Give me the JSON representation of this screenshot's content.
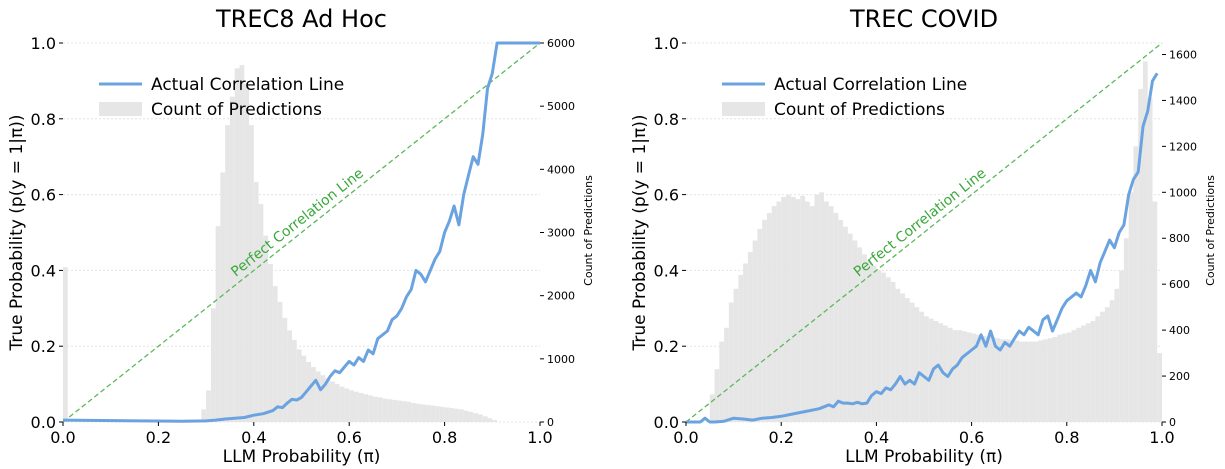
{
  "chart_data": [
    {
      "type": "bar",
      "title": "TREC8 Ad Hoc",
      "xlabel": "LLM Probability (π)",
      "ylabel": "True Probability (p(y = 1|π))",
      "ylabel_right": "Count of Predictions",
      "xlim": [
        0,
        1
      ],
      "ylim": [
        0,
        1
      ],
      "ylim_right": [
        0,
        6000
      ],
      "x_ticks": [
        "0.0",
        "0.2",
        "0.4",
        "0.6",
        "0.8",
        "1.0"
      ],
      "y_ticks": [
        "0.0",
        "0.2",
        "0.4",
        "0.6",
        "0.8",
        "1.0"
      ],
      "y_right_ticks": [
        "0",
        "1000",
        "2000",
        "3000",
        "4000",
        "5000",
        "6000"
      ],
      "legend": [
        "Actual Correlation Line",
        "Count of Predictions"
      ],
      "legend_position": "top-left",
      "annotation": "Perfect Correlation Line",
      "colors": {
        "actual": "#6aa3e0",
        "perfect": "#5cb85c",
        "hist": "#e6e6e6"
      },
      "histogram": {
        "bin_width": 0.01,
        "bins": [
          {
            "x": 0.0,
            "count": 2450
          },
          {
            "x": 0.29,
            "count": 200
          },
          {
            "x": 0.3,
            "count": 500
          },
          {
            "x": 0.31,
            "count": 1800
          },
          {
            "x": 0.32,
            "count": 3100
          },
          {
            "x": 0.33,
            "count": 3950
          },
          {
            "x": 0.34,
            "count": 4700
          },
          {
            "x": 0.35,
            "count": 5150
          },
          {
            "x": 0.36,
            "count": 5600
          },
          {
            "x": 0.37,
            "count": 5650
          },
          {
            "x": 0.38,
            "count": 5350
          },
          {
            "x": 0.39,
            "count": 4700
          },
          {
            "x": 0.4,
            "count": 3800
          },
          {
            "x": 0.41,
            "count": 3450
          },
          {
            "x": 0.42,
            "count": 2950
          },
          {
            "x": 0.43,
            "count": 2500
          },
          {
            "x": 0.44,
            "count": 2150
          },
          {
            "x": 0.45,
            "count": 1900
          },
          {
            "x": 0.46,
            "count": 1650
          },
          {
            "x": 0.47,
            "count": 1450
          },
          {
            "x": 0.48,
            "count": 1300
          },
          {
            "x": 0.49,
            "count": 1150
          },
          {
            "x": 0.5,
            "count": 1050
          },
          {
            "x": 0.51,
            "count": 950
          },
          {
            "x": 0.52,
            "count": 870
          },
          {
            "x": 0.53,
            "count": 800
          },
          {
            "x": 0.54,
            "count": 740
          },
          {
            "x": 0.55,
            "count": 690
          },
          {
            "x": 0.56,
            "count": 640
          },
          {
            "x": 0.57,
            "count": 600
          },
          {
            "x": 0.58,
            "count": 560
          },
          {
            "x": 0.59,
            "count": 530
          },
          {
            "x": 0.6,
            "count": 500
          },
          {
            "x": 0.61,
            "count": 480
          },
          {
            "x": 0.62,
            "count": 460
          },
          {
            "x": 0.63,
            "count": 440
          },
          {
            "x": 0.64,
            "count": 420
          },
          {
            "x": 0.65,
            "count": 400
          },
          {
            "x": 0.66,
            "count": 390
          },
          {
            "x": 0.67,
            "count": 370
          },
          {
            "x": 0.68,
            "count": 360
          },
          {
            "x": 0.69,
            "count": 350
          },
          {
            "x": 0.7,
            "count": 340
          },
          {
            "x": 0.71,
            "count": 330
          },
          {
            "x": 0.72,
            "count": 320
          },
          {
            "x": 0.73,
            "count": 300
          },
          {
            "x": 0.74,
            "count": 290
          },
          {
            "x": 0.75,
            "count": 280
          },
          {
            "x": 0.76,
            "count": 270
          },
          {
            "x": 0.77,
            "count": 260
          },
          {
            "x": 0.78,
            "count": 250
          },
          {
            "x": 0.79,
            "count": 240
          },
          {
            "x": 0.8,
            "count": 230
          },
          {
            "x": 0.81,
            "count": 220
          },
          {
            "x": 0.82,
            "count": 210
          },
          {
            "x": 0.83,
            "count": 200
          },
          {
            "x": 0.84,
            "count": 180
          },
          {
            "x": 0.85,
            "count": 160
          },
          {
            "x": 0.86,
            "count": 140
          },
          {
            "x": 0.87,
            "count": 120
          },
          {
            "x": 0.88,
            "count": 90
          },
          {
            "x": 0.89,
            "count": 60
          },
          {
            "x": 0.9,
            "count": 30
          }
        ]
      },
      "series": [
        {
          "name": "Actual Correlation Line",
          "x": [
            0.0,
            0.25,
            0.3,
            0.32,
            0.34,
            0.36,
            0.38,
            0.4,
            0.42,
            0.44,
            0.45,
            0.46,
            0.47,
            0.48,
            0.49,
            0.5,
            0.51,
            0.52,
            0.53,
            0.54,
            0.55,
            0.56,
            0.57,
            0.58,
            0.59,
            0.6,
            0.61,
            0.62,
            0.63,
            0.64,
            0.65,
            0.66,
            0.67,
            0.68,
            0.69,
            0.7,
            0.71,
            0.72,
            0.73,
            0.74,
            0.75,
            0.76,
            0.77,
            0.78,
            0.79,
            0.8,
            0.81,
            0.82,
            0.83,
            0.84,
            0.85,
            0.86,
            0.87,
            0.88,
            0.89,
            0.9,
            0.91,
            1.0
          ],
          "y": [
            0.005,
            0.002,
            0.003,
            0.005,
            0.008,
            0.01,
            0.012,
            0.018,
            0.022,
            0.03,
            0.04,
            0.038,
            0.05,
            0.06,
            0.058,
            0.065,
            0.08,
            0.095,
            0.11,
            0.085,
            0.1,
            0.12,
            0.135,
            0.13,
            0.145,
            0.16,
            0.15,
            0.17,
            0.16,
            0.19,
            0.18,
            0.22,
            0.23,
            0.24,
            0.27,
            0.28,
            0.3,
            0.33,
            0.35,
            0.4,
            0.39,
            0.37,
            0.4,
            0.43,
            0.45,
            0.5,
            0.53,
            0.57,
            0.52,
            0.6,
            0.65,
            0.7,
            0.68,
            0.76,
            0.88,
            0.92,
            1.0,
            1.0
          ]
        },
        {
          "name": "Perfect Correlation Line",
          "x": [
            0,
            1
          ],
          "y": [
            0,
            1
          ]
        }
      ]
    },
    {
      "type": "bar",
      "title": "TREC COVID",
      "xlabel": "LLM Probability (π)",
      "ylabel": "True Probability (p(y = 1|π))",
      "ylabel_right": "Count of Predictions",
      "xlim": [
        0,
        1
      ],
      "ylim": [
        0,
        1
      ],
      "ylim_right": [
        0,
        1650
      ],
      "x_ticks": [
        "0.0",
        "0.2",
        "0.4",
        "0.6",
        "0.8",
        "1.0"
      ],
      "y_ticks": [
        "0.0",
        "0.2",
        "0.4",
        "0.6",
        "0.8",
        "1.0"
      ],
      "y_right_ticks": [
        "0",
        "200",
        "400",
        "600",
        "800",
        "1000",
        "1200",
        "1400",
        "1600"
      ],
      "legend": [
        "Actual Correlation Line",
        "Count of Predictions"
      ],
      "legend_position": "top-left",
      "annotation": "Perfect Correlation Line",
      "colors": {
        "actual": "#6aa3e0",
        "perfect": "#5cb85c",
        "hist": "#e6e6e6"
      },
      "histogram": {
        "bin_width": 0.01,
        "bins": [
          {
            "x": 0.05,
            "count": 120
          },
          {
            "x": 0.06,
            "count": 230
          },
          {
            "x": 0.07,
            "count": 350
          },
          {
            "x": 0.08,
            "count": 410
          },
          {
            "x": 0.09,
            "count": 520
          },
          {
            "x": 0.1,
            "count": 580
          },
          {
            "x": 0.11,
            "count": 640
          },
          {
            "x": 0.12,
            "count": 690
          },
          {
            "x": 0.13,
            "count": 740
          },
          {
            "x": 0.14,
            "count": 790
          },
          {
            "x": 0.15,
            "count": 840
          },
          {
            "x": 0.16,
            "count": 880
          },
          {
            "x": 0.17,
            "count": 910
          },
          {
            "x": 0.18,
            "count": 940
          },
          {
            "x": 0.19,
            "count": 960
          },
          {
            "x": 0.2,
            "count": 980
          },
          {
            "x": 0.21,
            "count": 990
          },
          {
            "x": 0.22,
            "count": 980
          },
          {
            "x": 0.23,
            "count": 970
          },
          {
            "x": 0.24,
            "count": 985
          },
          {
            "x": 0.25,
            "count": 960
          },
          {
            "x": 0.26,
            "count": 940
          },
          {
            "x": 0.27,
            "count": 990
          },
          {
            "x": 0.28,
            "count": 1000
          },
          {
            "x": 0.29,
            "count": 960
          },
          {
            "x": 0.3,
            "count": 940
          },
          {
            "x": 0.31,
            "count": 910
          },
          {
            "x": 0.32,
            "count": 880
          },
          {
            "x": 0.33,
            "count": 850
          },
          {
            "x": 0.34,
            "count": 820
          },
          {
            "x": 0.35,
            "count": 790
          },
          {
            "x": 0.36,
            "count": 760
          },
          {
            "x": 0.37,
            "count": 730
          },
          {
            "x": 0.38,
            "count": 700
          },
          {
            "x": 0.39,
            "count": 680
          },
          {
            "x": 0.4,
            "count": 660
          },
          {
            "x": 0.41,
            "count": 650
          },
          {
            "x": 0.42,
            "count": 630
          },
          {
            "x": 0.43,
            "count": 610
          },
          {
            "x": 0.44,
            "count": 580
          },
          {
            "x": 0.45,
            "count": 560
          },
          {
            "x": 0.46,
            "count": 540
          },
          {
            "x": 0.47,
            "count": 520
          },
          {
            "x": 0.48,
            "count": 500
          },
          {
            "x": 0.49,
            "count": 480
          },
          {
            "x": 0.5,
            "count": 460
          },
          {
            "x": 0.51,
            "count": 450
          },
          {
            "x": 0.52,
            "count": 440
          },
          {
            "x": 0.53,
            "count": 430
          },
          {
            "x": 0.54,
            "count": 420
          },
          {
            "x": 0.55,
            "count": 410
          },
          {
            "x": 0.56,
            "count": 400
          },
          {
            "x": 0.57,
            "count": 400
          },
          {
            "x": 0.58,
            "count": 395
          },
          {
            "x": 0.59,
            "count": 390
          },
          {
            "x": 0.6,
            "count": 385
          },
          {
            "x": 0.61,
            "count": 380
          },
          {
            "x": 0.62,
            "count": 375
          },
          {
            "x": 0.63,
            "count": 370
          },
          {
            "x": 0.64,
            "count": 370
          },
          {
            "x": 0.65,
            "count": 365
          },
          {
            "x": 0.66,
            "count": 360
          },
          {
            "x": 0.67,
            "count": 360
          },
          {
            "x": 0.68,
            "count": 355
          },
          {
            "x": 0.69,
            "count": 355
          },
          {
            "x": 0.7,
            "count": 350
          },
          {
            "x": 0.71,
            "count": 350
          },
          {
            "x": 0.72,
            "count": 350
          },
          {
            "x": 0.73,
            "count": 350
          },
          {
            "x": 0.74,
            "count": 355
          },
          {
            "x": 0.75,
            "count": 360
          },
          {
            "x": 0.76,
            "count": 365
          },
          {
            "x": 0.77,
            "count": 370
          },
          {
            "x": 0.78,
            "count": 380
          },
          {
            "x": 0.79,
            "count": 385
          },
          {
            "x": 0.8,
            "count": 390
          },
          {
            "x": 0.81,
            "count": 400
          },
          {
            "x": 0.82,
            "count": 410
          },
          {
            "x": 0.83,
            "count": 420
          },
          {
            "x": 0.84,
            "count": 430
          },
          {
            "x": 0.85,
            "count": 440
          },
          {
            "x": 0.86,
            "count": 460
          },
          {
            "x": 0.87,
            "count": 480
          },
          {
            "x": 0.88,
            "count": 500
          },
          {
            "x": 0.89,
            "count": 530
          },
          {
            "x": 0.9,
            "count": 580
          },
          {
            "x": 0.91,
            "count": 660
          },
          {
            "x": 0.92,
            "count": 800
          },
          {
            "x": 0.93,
            "count": 1000
          },
          {
            "x": 0.94,
            "count": 1200
          },
          {
            "x": 0.95,
            "count": 1450
          },
          {
            "x": 0.96,
            "count": 1570
          },
          {
            "x": 0.97,
            "count": 1410
          },
          {
            "x": 0.98,
            "count": 960
          },
          {
            "x": 0.99,
            "count": 300
          }
        ]
      },
      "series": [
        {
          "name": "Actual Correlation Line",
          "x": [
            0.0,
            0.03,
            0.04,
            0.05,
            0.06,
            0.08,
            0.1,
            0.12,
            0.14,
            0.16,
            0.18,
            0.2,
            0.22,
            0.24,
            0.26,
            0.28,
            0.29,
            0.3,
            0.31,
            0.32,
            0.33,
            0.34,
            0.35,
            0.36,
            0.37,
            0.38,
            0.39,
            0.4,
            0.41,
            0.42,
            0.43,
            0.44,
            0.45,
            0.46,
            0.47,
            0.48,
            0.49,
            0.5,
            0.51,
            0.52,
            0.53,
            0.54,
            0.55,
            0.56,
            0.57,
            0.58,
            0.59,
            0.6,
            0.61,
            0.62,
            0.63,
            0.64,
            0.65,
            0.66,
            0.67,
            0.68,
            0.69,
            0.7,
            0.71,
            0.72,
            0.73,
            0.74,
            0.75,
            0.76,
            0.77,
            0.78,
            0.79,
            0.8,
            0.81,
            0.82,
            0.83,
            0.84,
            0.85,
            0.86,
            0.87,
            0.88,
            0.89,
            0.9,
            0.91,
            0.92,
            0.93,
            0.94,
            0.95,
            0.96,
            0.97,
            0.98,
            0.99
          ],
          "y": [
            0.0,
            0.0,
            0.01,
            0.0,
            0.0,
            0.002,
            0.01,
            0.008,
            0.005,
            0.01,
            0.012,
            0.015,
            0.02,
            0.025,
            0.03,
            0.035,
            0.04,
            0.045,
            0.04,
            0.055,
            0.05,
            0.05,
            0.048,
            0.052,
            0.048,
            0.05,
            0.07,
            0.08,
            0.075,
            0.09,
            0.085,
            0.1,
            0.12,
            0.1,
            0.11,
            0.1,
            0.13,
            0.12,
            0.11,
            0.14,
            0.15,
            0.13,
            0.12,
            0.14,
            0.15,
            0.17,
            0.18,
            0.19,
            0.2,
            0.23,
            0.2,
            0.24,
            0.2,
            0.19,
            0.21,
            0.2,
            0.22,
            0.24,
            0.23,
            0.25,
            0.24,
            0.23,
            0.27,
            0.28,
            0.24,
            0.27,
            0.3,
            0.32,
            0.33,
            0.34,
            0.33,
            0.36,
            0.4,
            0.37,
            0.42,
            0.45,
            0.48,
            0.46,
            0.5,
            0.52,
            0.6,
            0.64,
            0.66,
            0.78,
            0.82,
            0.9,
            0.92
          ]
        },
        {
          "name": "Perfect Correlation Line",
          "x": [
            0,
            1
          ],
          "y": [
            0,
            1
          ]
        }
      ]
    }
  ]
}
